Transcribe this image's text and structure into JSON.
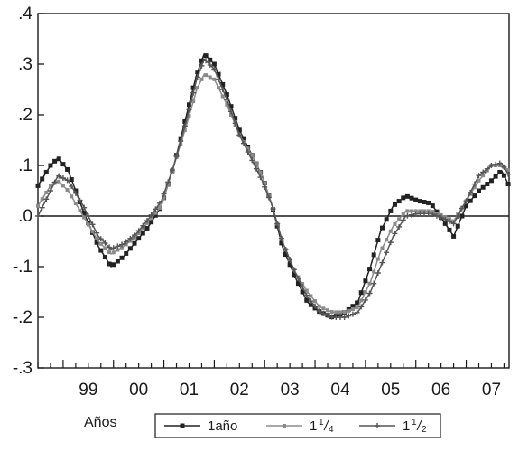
{
  "chart_data": {
    "type": "line",
    "title": "",
    "xlabel": "Años",
    "ylabel": "",
    "ylim": [
      -0.3,
      0.4
    ],
    "xlim": [
      1998.5,
      2007.85
    ],
    "y_ticks": [
      0.4,
      0.3,
      0.2,
      0.1,
      0.0,
      -0.1,
      -0.2,
      -0.3
    ],
    "y_tick_labels": [
      ".4",
      ".3",
      ".2",
      ".1",
      ".0",
      "-.1",
      "-.2",
      "-.3"
    ],
    "x_tick_labels": [
      {
        "label": "99",
        "year": 1999
      },
      {
        "label": "00",
        "year": 2000
      },
      {
        "label": "01",
        "year": 2001
      },
      {
        "label": "02",
        "year": 2002
      },
      {
        "label": "03",
        "year": 2003
      },
      {
        "label": "04",
        "year": 2004
      },
      {
        "label": "05",
        "year": 2005
      },
      {
        "label": "06",
        "year": 2006
      },
      {
        "label": "07",
        "year": 2007
      }
    ],
    "zero_line": true,
    "grid": false,
    "legend_position": "bottom",
    "legend": {
      "title": "Años",
      "entries": [
        {
          "label": "1año",
          "color": "#222222"
        },
        {
          "label_main": "1",
          "label_num": "1",
          "label_den": "4",
          "color": "#8a8a8a"
        },
        {
          "label_main": "1",
          "label_num": "1",
          "label_den": "2",
          "color": "#555555"
        }
      ]
    },
    "series": [
      {
        "color": "#222222",
        "x": [
          1998.5,
          1998.75,
          1998.9,
          1999.1,
          1999.4,
          1999.7,
          1999.95,
          2000.2,
          2000.45,
          2000.7,
          2000.95,
          2001.2,
          2001.45,
          2001.65,
          2001.8,
          2002.0,
          2002.25,
          2002.5,
          2002.75,
          2002.95,
          2003.15,
          2003.35,
          2003.6,
          2003.85,
          2004.1,
          2004.35,
          2004.6,
          2004.85,
          2005.1,
          2005.3,
          2005.55,
          2005.8,
          2006.05,
          2006.3,
          2006.55,
          2006.75,
          2007.0,
          2007.25,
          2007.5,
          2007.7,
          2007.85
        ],
        "y": [
          0.06,
          0.1,
          0.115,
          0.09,
          0.01,
          -0.06,
          -0.1,
          -0.08,
          -0.05,
          -0.02,
          0.02,
          0.1,
          0.2,
          0.28,
          0.32,
          0.3,
          0.24,
          0.17,
          0.12,
          0.08,
          0.02,
          -0.06,
          -0.12,
          -0.17,
          -0.19,
          -0.2,
          -0.19,
          -0.17,
          -0.1,
          -0.03,
          0.02,
          0.04,
          0.03,
          0.025,
          -0.01,
          -0.04,
          0.02,
          0.05,
          0.07,
          0.09,
          0.06
        ]
      },
      {
        "color": "#8a8a8a",
        "x": [
          1998.5,
          1998.75,
          1998.9,
          1999.1,
          1999.4,
          1999.7,
          1999.95,
          2000.2,
          2000.45,
          2000.7,
          2000.95,
          2001.2,
          2001.45,
          2001.65,
          2001.8,
          2002.0,
          2002.25,
          2002.5,
          2002.75,
          2002.95,
          2003.15,
          2003.35,
          2003.6,
          2003.85,
          2004.1,
          2004.35,
          2004.6,
          2004.85,
          2005.1,
          2005.3,
          2005.55,
          2005.8,
          2006.05,
          2006.3,
          2006.55,
          2006.75,
          2007.0,
          2007.25,
          2007.5,
          2007.7,
          2007.85
        ],
        "y": [
          0.02,
          0.06,
          0.07,
          0.05,
          0.0,
          -0.05,
          -0.075,
          -0.06,
          -0.04,
          -0.01,
          0.02,
          0.1,
          0.18,
          0.25,
          0.28,
          0.27,
          0.22,
          0.16,
          0.12,
          0.08,
          0.02,
          -0.05,
          -0.11,
          -0.15,
          -0.18,
          -0.19,
          -0.19,
          -0.18,
          -0.13,
          -0.07,
          -0.02,
          0.01,
          0.01,
          0.01,
          0.0,
          -0.01,
          0.03,
          0.07,
          0.1,
          0.1,
          0.09
        ]
      },
      {
        "color": "#555555",
        "x": [
          1998.5,
          1998.75,
          1998.9,
          1999.1,
          1999.4,
          1999.7,
          1999.95,
          2000.2,
          2000.45,
          2000.7,
          2000.95,
          2001.2,
          2001.45,
          2001.65,
          2001.8,
          2002.0,
          2002.25,
          2002.5,
          2002.75,
          2002.95,
          2003.15,
          2003.35,
          2003.6,
          2003.85,
          2004.1,
          2004.35,
          2004.6,
          2004.85,
          2005.1,
          2005.3,
          2005.55,
          2005.8,
          2006.05,
          2006.3,
          2006.55,
          2006.75,
          2007.0,
          2007.25,
          2007.5,
          2007.7,
          2007.85
        ],
        "y": [
          0.0,
          0.05,
          0.08,
          0.07,
          0.02,
          -0.04,
          -0.065,
          -0.055,
          -0.035,
          -0.005,
          0.03,
          0.1,
          0.19,
          0.27,
          0.31,
          0.29,
          0.23,
          0.16,
          0.11,
          0.07,
          0.02,
          -0.05,
          -0.11,
          -0.16,
          -0.19,
          -0.2,
          -0.2,
          -0.19,
          -0.15,
          -0.1,
          -0.04,
          0.0,
          0.005,
          0.005,
          -0.005,
          -0.015,
          0.03,
          0.08,
          0.1,
          0.105,
          0.08
        ]
      }
    ]
  }
}
